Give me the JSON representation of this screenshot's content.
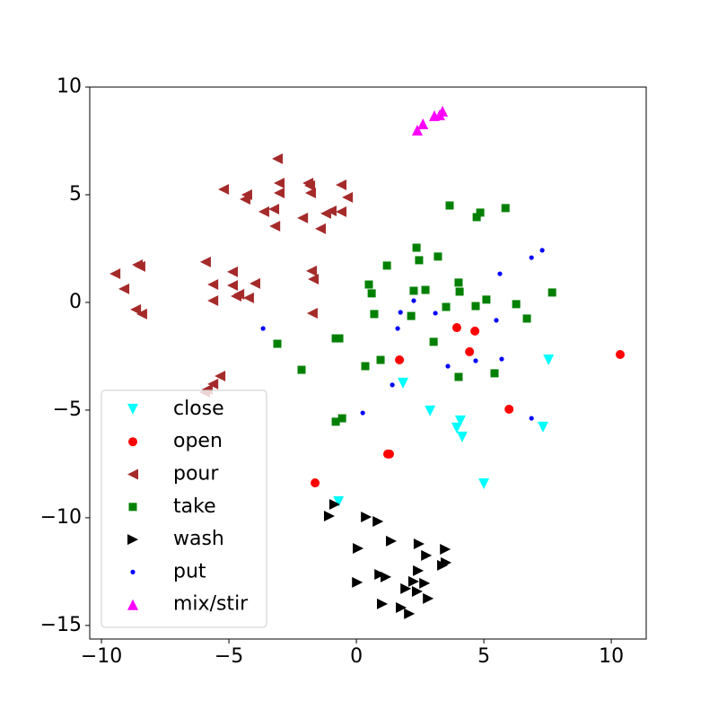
{
  "chart_data": {
    "type": "scatter",
    "xlim": [
      -10.46,
      11.37
    ],
    "ylim": [
      -15.63,
      10.0
    ],
    "xticks": [
      {
        "value": -10,
        "label": "−10"
      },
      {
        "value": -5,
        "label": "−5"
      },
      0,
      5,
      10
    ],
    "yticks": [
      {
        "value": -15,
        "label": "−15"
      },
      {
        "value": -10,
        "label": "−10"
      },
      {
        "value": -5,
        "label": "−5"
      },
      0,
      5,
      10
    ],
    "legend": "lower left",
    "series": [
      {
        "name": "close",
        "color": "cyan",
        "marker": "triangle-down",
        "x": [
          7.54,
          1.83,
          2.89,
          4.08,
          3.94,
          4.15,
          7.32,
          5.0,
          -0.7
        ],
        "values": [
          -2.67,
          -3.75,
          -5.04,
          -5.5,
          -5.83,
          -6.25,
          -5.79,
          -8.42,
          -9.25
        ]
      },
      {
        "name": "open",
        "color": "red",
        "marker": "circle",
        "x": [
          3.94,
          4.65,
          1.69,
          4.44,
          5.99,
          10.35,
          1.23,
          1.3,
          -1.62
        ],
        "values": [
          -1.17,
          -1.33,
          -2.67,
          -2.29,
          -4.96,
          -2.42,
          -7.04,
          -7.04,
          -8.38
        ]
      },
      {
        "name": "pour",
        "color": "brown",
        "marker": "triangle-left",
        "x": [
          -3.1,
          -3.03,
          -3.03,
          -1.9,
          -1.83,
          -1.8,
          -0.6,
          -5.21,
          -4.3,
          -4.37,
          -0.35,
          -3.63,
          -3.24,
          -3.2,
          -2.11,
          -1.2,
          -0.99,
          -1.41,
          -0.6,
          -9.47,
          -8.59,
          -8.49,
          -9.12,
          -8.66,
          -8.42,
          -5.92,
          -4.86,
          -5.63,
          -4.86,
          -3.98,
          -5.63,
          -4.72,
          -4.61,
          -4.23,
          -1.76,
          -1.69,
          -1.73,
          -5.35,
          -5.63,
          -5.85,
          -5.95
        ],
        "values": [
          6.67,
          5.54,
          5.08,
          5.54,
          5.42,
          5.08,
          5.46,
          5.25,
          5.0,
          4.79,
          4.88,
          4.21,
          4.33,
          3.54,
          3.92,
          4.13,
          4.25,
          3.42,
          4.21,
          1.33,
          1.75,
          1.67,
          0.63,
          -0.33,
          -0.54,
          1.88,
          1.42,
          0.83,
          0.79,
          0.88,
          0.08,
          0.29,
          0.38,
          0.21,
          1.46,
          1.08,
          -0.5,
          -3.42,
          -3.79,
          -4.04,
          -4.17
        ]
      },
      {
        "name": "take",
        "color": "green",
        "marker": "square",
        "x": [
          3.66,
          4.72,
          4.86,
          5.85,
          2.36,
          2.46,
          3.2,
          1.2,
          0.49,
          0.6,
          2.25,
          2.71,
          4.01,
          4.05,
          5.1,
          6.27,
          7.68,
          3.52,
          4.68,
          6.69,
          0.7,
          2.15,
          -3.1,
          -0.81,
          -0.67,
          3.03,
          0.95,
          0.35,
          -2.15,
          4.01,
          5.42,
          -0.56,
          -0.81
        ],
        "values": [
          4.5,
          3.96,
          4.17,
          4.38,
          2.54,
          1.96,
          2.13,
          1.71,
          0.83,
          0.42,
          0.54,
          0.58,
          0.92,
          0.5,
          0.13,
          -0.08,
          0.46,
          -0.21,
          -0.17,
          -0.75,
          -0.54,
          -0.63,
          -1.92,
          -1.67,
          -1.67,
          -1.83,
          -2.67,
          -2.96,
          -3.13,
          -3.46,
          -3.29,
          -5.38,
          -5.54
        ]
      },
      {
        "name": "wash",
        "color": "black",
        "marker": "triangle-right",
        "x": [
          -1.06,
          -0.85,
          0.39,
          0.85,
          1.37,
          0.07,
          2.46,
          3.49,
          2.75,
          3.52,
          3.38,
          2.43,
          0.92,
          1.16,
          2.25,
          2.68,
          0.04,
          1.94,
          2.39,
          2.82,
          1.02,
          1.76,
          2.08
        ],
        "values": [
          -9.92,
          -9.38,
          -9.96,
          -10.17,
          -11.08,
          -11.42,
          -11.21,
          -11.46,
          -11.75,
          -12.08,
          -12.21,
          -12.46,
          -12.63,
          -12.75,
          -12.96,
          -13.04,
          -13.0,
          -13.29,
          -13.42,
          -13.75,
          -14.0,
          -14.17,
          -14.46
        ]
      },
      {
        "name": "put",
        "color": "blue",
        "marker": "dot",
        "x": [
          7.29,
          6.87,
          5.63,
          2.25,
          1.73,
          3.1,
          5.49,
          -3.66,
          1.62,
          5.7,
          4.68,
          3.59,
          1.41,
          0.25,
          6.87
        ],
        "values": [
          2.42,
          2.08,
          1.33,
          0.08,
          -0.46,
          -0.5,
          -0.83,
          -1.21,
          -1.21,
          -2.63,
          -2.71,
          -2.96,
          -3.83,
          -5.13,
          -5.38
        ]
      },
      {
        "name": "mix/stir",
        "color": "magenta",
        "marker": "triangle-up",
        "x": [
          2.39,
          2.61,
          3.06,
          3.27,
          3.38
        ],
        "values": [
          8.0,
          8.29,
          8.67,
          8.71,
          8.88
        ]
      }
    ]
  }
}
